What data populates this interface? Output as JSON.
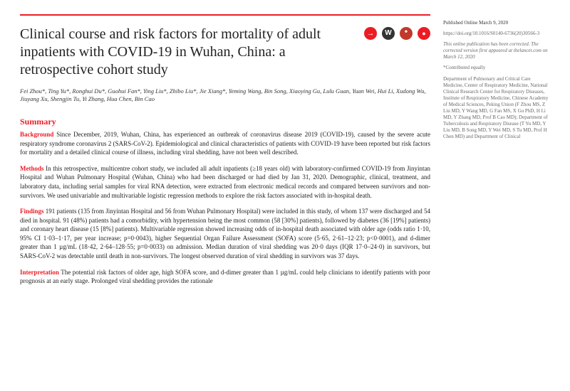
{
  "accent_color": "#ed1c24",
  "title": "Clinical course and risk factors for mortality of adult inpatients with COVID-19 in Wuhan, China: a retrospective cohort study",
  "authors": "Fei Zhou*, Ting Yu*, Ronghui Du*, Guohui Fan*, Ying Liu*, Zhibo Liu*, Jie Xiang*, Yeming Wang, Bin Song, Xiaoying Gu, Lulu Guan, Yuan Wei, Hui Li, Xudong Wu, Jiuyang Xu, Shengjin Tu, Yi Zhang, Hua Chen, Bin Cao",
  "summary_heading": "Summary",
  "sections": {
    "background": {
      "lead": "Background",
      "text": " Since December, 2019, Wuhan, China, has experienced an outbreak of coronavirus disease 2019 (COVID-19), caused by the severe acute respiratory syndrome coronavirus 2 (SARS-CoV-2). Epidemiological and clinical characteristics of patients with COVID-19 have been reported but risk factors for mortality and a detailed clinical course of illness, including viral shedding, have not been well described."
    },
    "methods": {
      "lead": "Methods",
      "text": " In this retrospective, multicentre cohort study, we included all adult inpatients (≥18 years old) with laboratory-confirmed COVID-19 from Jinyintan Hospital and Wuhan Pulmonary Hospital (Wuhan, China) who had been discharged or had died by Jan 31, 2020. Demographic, clinical, treatment, and laboratory data, including serial samples for viral RNA detection, were extracted from electronic medical records and compared between survivors and non-survivors. We used univariable and multivariable logistic regression methods to explore the risk factors associated with in-hospital death."
    },
    "findings": {
      "lead": "Findings",
      "text": " 191 patients (135 from Jinyintan Hospital and 56 from Wuhan Pulmonary Hospital) were included in this study, of whom 137 were discharged and 54 died in hospital. 91 (48%) patients had a comorbidity, with hypertension being the most common (58 [30%] patients), followed by diabetes (36 [19%] patients) and coronary heart disease (15 [8%] patients). Multivariable regression showed increasing odds of in-hospital death associated with older age (odds ratio 1·10, 95% CI 1·03–1·17, per year increase; p=0·0043), higher Sequential Organ Failure Assessment (SOFA) score (5·65, 2·61–12·23; p<0·0001), and d-dimer greater than 1 µg/mL (18·42, 2·64–128·55; p=0·0033) on admission. Median duration of viral shedding was 20·0 days (IQR 17·0–24·0) in survivors, but SARS-CoV-2 was detectable until death in non-survivors. The longest observed duration of viral shedding in survivors was 37 days."
    },
    "interpretation": {
      "lead": "Interpretation",
      "text": " The potential risk factors of older age, high SOFA score, and d-dimer greater than 1 µg/mL could help clinicians to identify patients with poor prognosis at an early stage. Prolonged viral shedding provides the rationale"
    }
  },
  "sidebar": {
    "published": "Published Online March 9, 2020",
    "doi": "https://doi.org/10.1016/S0140-6736(20)30566-3",
    "correction": "This online publication has been corrected. The corrected version first appeared at thelancet.com on March 12, 2020",
    "contrib": "*Contributed equally",
    "affil": "Department of Pulmonary and Critical Care Medicine, Center of Respiratory Medicine, National Clinical Research Center for Respiratory Diseases, Institute of Respiratory Medicine, Chinese Academy of Medical Sciences, Peking Union (F Zhou MS, Z Liu MD, Y Wang MD, G Fan MS, X Gu PhD, H Li MD, Y Zhang MD, Prof B Cao MD); Department of Tuberculosis and Respiratory Disease (T Yu MD, Y Liu MD, B Song MD, Y Wei MD, S Tu MD, Prof H Chen MD) and Department of Clinical"
  }
}
